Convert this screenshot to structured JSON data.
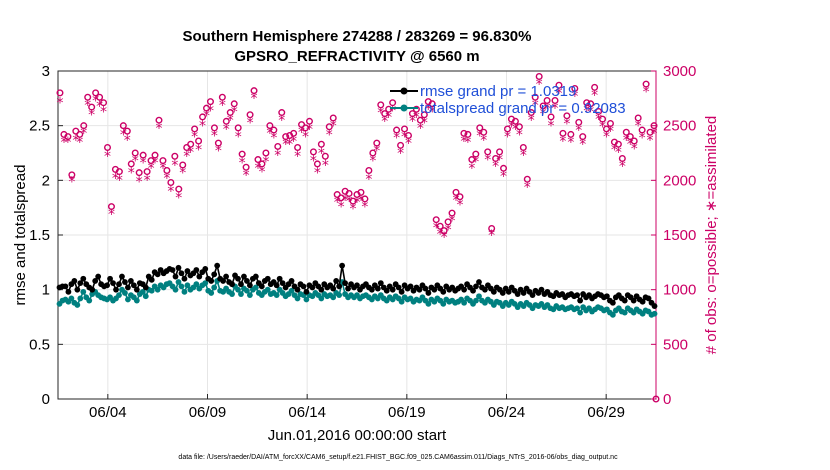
{
  "chart_data": {
    "type": "line",
    "title": "Southern Hemisphere 274288 / 283269 = 96.830%",
    "subtitle": "GPSRO_REFRACTIVITY @ 6560 m",
    "xlabel": "Jun.01,2016 00:00:00 start",
    "ylabel_left": "rmse and totalspread",
    "ylabel_right": "# of obs: o=possible; ∗=assimilated",
    "footnote": "data file: /Users/raeder/DAI/ATM_forcXX/CAM6_setup/f.e21.FHIST_BGC.f09_025.CAM6assim.011/Diags_NTrS_2016-06/obs_diag_output.nc",
    "x_range_days": [
      0.5,
      30.5
    ],
    "x_ticks": [
      {
        "day": 3,
        "label": "06/04"
      },
      {
        "day": 8,
        "label": "06/09"
      },
      {
        "day": 13,
        "label": "06/14"
      },
      {
        "day": 18,
        "label": "06/19"
      },
      {
        "day": 23,
        "label": "06/24"
      },
      {
        "day": 28,
        "label": "06/29"
      }
    ],
    "ylim_left": [
      0,
      3
    ],
    "yticks_left": [
      "0",
      "0.5",
      "1",
      "1.5",
      "2",
      "2.5",
      "3"
    ],
    "ylim_right": [
      0,
      3000
    ],
    "yticks_right": [
      "0",
      "500",
      "1000",
      "1500",
      "2000",
      "2500",
      "3000"
    ],
    "grid": true,
    "legend_position": "top-right",
    "colors": {
      "rmse": "#000000",
      "spread": "#008080",
      "counts": "#cc0066",
      "legend_text": "#1f4fd8",
      "grid": "#e6e6e6"
    },
    "series": [
      {
        "name": "rmse grand pr = 1.0319",
        "values": [
          1.02,
          1.03,
          1.03,
          0.98,
          1.05,
          1.08,
          1.0,
          1.06,
          1.1,
          1.05,
          1.02,
          1.0,
          1.08,
          1.12,
          1.05,
          1.03,
          1.04,
          1.1,
          1.06,
          1.0,
          1.05,
          1.12,
          1.07,
          1.02,
          1.08,
          1.04,
          1.0,
          1.06,
          1.05,
          1.02,
          1.12,
          1.09,
          1.16,
          1.14,
          1.18,
          1.15,
          1.17,
          1.19,
          1.18,
          1.12,
          1.2,
          1.15,
          1.1,
          1.17,
          1.13,
          1.15,
          1.18,
          1.12,
          1.16,
          1.19,
          1.1,
          1.08,
          1.14,
          1.22,
          1.1,
          1.08,
          1.12,
          1.07,
          1.05,
          1.13,
          1.1,
          1.05,
          1.12,
          1.08,
          1.04,
          1.1,
          1.12,
          1.06,
          1.03,
          1.08,
          1.1,
          1.05,
          1.07,
          1.04,
          1.1,
          1.06,
          1.02,
          1.05,
          1.08,
          1.03,
          1.0,
          1.05,
          1.03,
          0.98,
          1.04,
          1.02,
          1.06,
          1.03,
          1.0,
          1.05,
          1.02,
          1.04,
          1.01,
          1.08,
          1.03,
          1.22,
          1.06,
          1.01,
          1.05,
          1.02,
          1.04,
          1.0,
          1.03,
          1.05,
          1.02,
          1.0,
          1.04,
          1.01,
          1.06,
          1.02,
          0.99,
          1.03,
          1.0,
          1.05,
          1.02,
          0.98,
          1.04,
          1.01,
          1.03,
          0.99,
          1.02,
          1.0,
          1.04,
          1.01,
          0.97,
          1.02,
          1.0,
          1.04,
          1.01,
          0.98,
          1.03,
          1.0,
          1.02,
          0.99,
          1.01,
          1.03,
          1.0,
          1.05,
          1.02,
          0.99,
          1.03,
          1.07,
          1.02,
          1.0,
          1.04,
          1.01,
          0.98,
          1.02,
          1.0,
          0.97,
          1.01,
          0.98,
          1.02,
          0.99,
          0.96,
          1.0,
          0.97,
          1.01,
          0.98,
          0.95,
          0.99,
          0.97,
          1.0,
          0.96,
          0.98,
          0.95,
          0.94,
          0.97,
          0.95,
          0.96,
          0.93,
          0.95,
          0.96,
          0.94,
          0.95,
          0.9,
          0.96,
          0.93,
          0.95,
          0.92,
          0.94,
          0.96,
          0.95,
          0.93,
          0.94,
          0.9,
          0.88,
          0.93,
          0.95,
          0.92,
          0.9,
          0.95,
          0.93,
          0.9,
          0.94,
          0.91,
          0.89,
          0.93,
          0.92,
          0.88,
          0.85
        ]
      },
      {
        "name": "totalspread grand pr = 0.92083",
        "values": [
          0.87,
          0.9,
          0.91,
          0.89,
          0.92,
          0.88,
          0.86,
          0.92,
          0.98,
          0.93,
          0.9,
          0.96,
          0.98,
          0.95,
          0.93,
          0.92,
          0.91,
          0.93,
          0.9,
          0.92,
          0.95,
          1.0,
          0.97,
          0.91,
          0.95,
          0.93,
          0.9,
          0.96,
          0.98,
          0.94,
          1.0,
          0.99,
          1.03,
          1.0,
          1.04,
          1.02,
          1.05,
          1.06,
          1.03,
          1.0,
          1.07,
          1.03,
          0.98,
          1.04,
          1.0,
          1.02,
          1.05,
          1.01,
          1.04,
          1.06,
          0.99,
          0.97,
          1.02,
          1.08,
          0.99,
          0.98,
          1.01,
          0.98,
          0.96,
          1.03,
          1.0,
          0.96,
          1.01,
          0.99,
          0.95,
          1.0,
          1.02,
          0.97,
          0.95,
          0.98,
          1.0,
          0.96,
          0.97,
          0.95,
          1.0,
          0.97,
          0.94,
          0.96,
          0.99,
          0.95,
          0.92,
          0.96,
          0.95,
          0.91,
          0.95,
          0.94,
          0.97,
          0.95,
          0.92,
          0.96,
          0.94,
          0.95,
          0.93,
          0.97,
          0.95,
          1.07,
          0.96,
          0.93,
          0.95,
          0.93,
          0.95,
          0.92,
          0.94,
          0.95,
          0.93,
          0.91,
          0.94,
          0.92,
          0.95,
          0.92,
          0.9,
          0.93,
          0.91,
          0.94,
          0.92,
          0.89,
          0.93,
          0.91,
          0.92,
          0.89,
          0.91,
          0.9,
          0.93,
          0.9,
          0.87,
          0.91,
          0.89,
          0.92,
          0.9,
          0.87,
          0.91,
          0.89,
          0.9,
          0.88,
          0.89,
          0.91,
          0.88,
          0.92,
          0.9,
          0.87,
          0.9,
          0.94,
          0.9,
          0.88,
          0.91,
          0.89,
          0.86,
          0.89,
          0.88,
          0.85,
          0.88,
          0.86,
          0.89,
          0.87,
          0.84,
          0.87,
          0.85,
          0.88,
          0.86,
          0.83,
          0.86,
          0.85,
          0.87,
          0.84,
          0.86,
          0.83,
          0.82,
          0.85,
          0.83,
          0.84,
          0.82,
          0.83,
          0.84,
          0.82,
          0.83,
          0.79,
          0.84,
          0.81,
          0.83,
          0.8,
          0.82,
          0.84,
          0.83,
          0.81,
          0.82,
          0.79,
          0.77,
          0.81,
          0.83,
          0.8,
          0.79,
          0.83,
          0.81,
          0.79,
          0.82,
          0.8,
          0.78,
          0.81,
          0.8,
          0.77,
          0.78
        ]
      },
      {
        "name": "possible",
        "values": [
          2800,
          2420,
          2400,
          2050,
          2450,
          2420,
          2500,
          2760,
          2670,
          2800,
          2760,
          2710,
          2300,
          1760,
          2100,
          2080,
          2500,
          2450,
          2150,
          2250,
          2070,
          2230,
          2080,
          2180,
          2230,
          2550,
          2180,
          2090,
          1980,
          2220,
          1920,
          2140,
          2300,
          2330,
          2470,
          2360,
          2580,
          2660,
          2720,
          2480,
          2340,
          2760,
          2540,
          2620,
          2700,
          2480,
          2240,
          2120,
          2600,
          2820,
          2190,
          2150,
          2250,
          2500,
          2460,
          2310,
          2620,
          2400,
          2410,
          2430,
          2300,
          2510,
          2480,
          2540,
          2260,
          2150,
          2330,
          2220,
          2490,
          2570,
          1870,
          1840,
          1900,
          1880,
          1810,
          1870,
          1890,
          1830,
          2090,
          2250,
          2340,
          2690,
          2610,
          2650,
          2710,
          2460,
          2320,
          2470,
          2410,
          2610,
          2650,
          2550,
          2600,
          2720,
          2700,
          1640,
          1580,
          1540,
          1620,
          1700,
          1890,
          1850,
          2430,
          2420,
          2190,
          2240,
          2480,
          2440,
          2260,
          1560,
          2200,
          2260,
          2110,
          2470,
          2560,
          2540,
          2490,
          2300,
          2010,
          2620,
          2760,
          2950,
          2680,
          2730,
          2580,
          2730,
          2870,
          2430,
          2590,
          2420,
          2840,
          2530,
          2400,
          2710,
          2700,
          2850,
          2630,
          2560,
          2470,
          2520,
          2350,
          2330,
          2200,
          2440,
          2400,
          2360,
          2570,
          2460,
          2880,
          2440,
          2500
        ]
      },
      {
        "name": "assimilated",
        "values": [
          2720,
          2360,
          2360,
          2000,
          2380,
          2360,
          2440,
          2700,
          2610,
          2740,
          2690,
          2640,
          2230,
          1700,
          2030,
          2010,
          2430,
          2380,
          2080,
          2190,
          2000,
          2170,
          2010,
          2120,
          2170,
          2490,
          2120,
          2030,
          1910,
          2150,
          1850,
          2080,
          2230,
          2270,
          2410,
          2290,
          2510,
          2600,
          2650,
          2420,
          2280,
          2700,
          2480,
          2560,
          2640,
          2410,
          2170,
          2060,
          2540,
          2760,
          2120,
          2090,
          2180,
          2440,
          2400,
          2240,
          2560,
          2340,
          2340,
          2370,
          2230,
          2450,
          2410,
          2480,
          2190,
          2080,
          2260,
          2150,
          2430,
          2510,
          1810,
          1770,
          1830,
          1820,
          1750,
          1810,
          1830,
          1770,
          2020,
          2190,
          2280,
          2630,
          2550,
          2590,
          2650,
          2400,
          2260,
          2410,
          2350,
          2550,
          2590,
          2490,
          2540,
          2660,
          2640,
          1580,
          1520,
          1490,
          1560,
          1640,
          1830,
          1790,
          2370,
          2360,
          2120,
          2180,
          2420,
          2380,
          2200,
          1510,
          2140,
          2200,
          2050,
          2410,
          2500,
          2480,
          2430,
          2240,
          1950,
          2560,
          2700,
          2890,
          2620,
          2670,
          2510,
          2670,
          2810,
          2370,
          2530,
          2360,
          2780,
          2470,
          2340,
          2650,
          2640,
          2790,
          2570,
          2500,
          2410,
          2460,
          2290,
          2270,
          2140,
          2380,
          2340,
          2300,
          2510,
          2400,
          2820,
          2380,
          2440
        ]
      }
    ]
  }
}
